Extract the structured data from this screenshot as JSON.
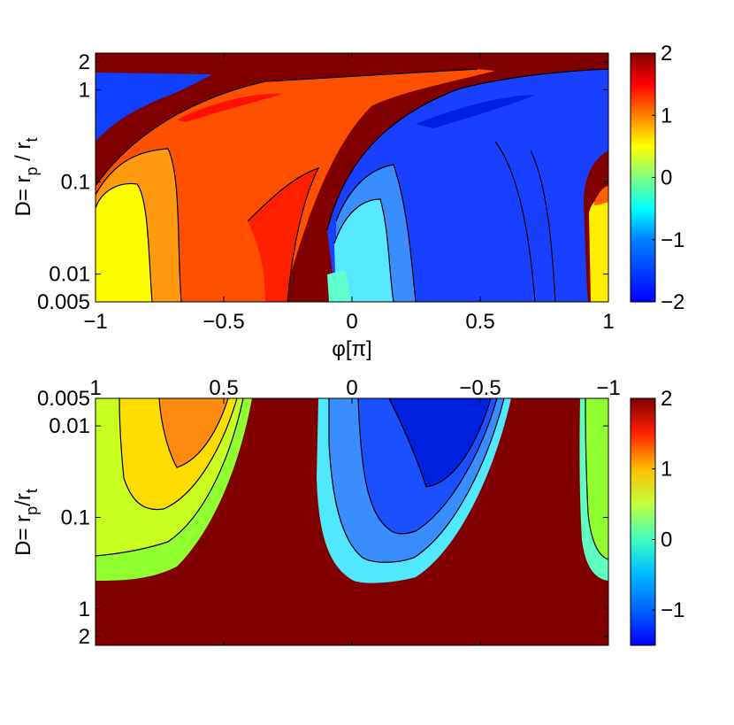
{
  "chart_data": [
    {
      "type": "heatmap",
      "panel": "top",
      "title": "",
      "xlabel_parts": {
        "main": "φ[π]"
      },
      "ylabel_parts": {
        "main": "D= r",
        "sub1": "p",
        "mid": " / r",
        "sub2": "t"
      },
      "x_ticks": [
        "−1",
        "−0.5",
        "0",
        "0.5",
        "1"
      ],
      "x_tick_values": [
        -1,
        -0.5,
        0,
        0.5,
        1
      ],
      "y_ticks": [
        "2",
        "1",
        "0.1",
        "0.01",
        "0.005"
      ],
      "y_tick_values": [
        2,
        1,
        0.1,
        0.01,
        0.005
      ],
      "y_scale": "log",
      "xlim": [
        -1,
        1
      ],
      "ylim": [
        0.005,
        2.5
      ],
      "colorbar_ticks": [
        "2",
        "1",
        "0",
        "−1",
        "−2"
      ],
      "colorbar_values": [
        2,
        1,
        0,
        -1,
        -2
      ],
      "colorbar_range": [
        -2,
        2
      ],
      "colors": {
        "background": "#800000",
        "outline": "#000000"
      }
    },
    {
      "type": "heatmap",
      "panel": "bottom",
      "title": "",
      "xlabel_parts": {
        "main": ""
      },
      "ylabel_parts": {
        "main": "D= r",
        "sub1": "p",
        "mid": "/r",
        "sub2": "t"
      },
      "x_ticks": [
        "1",
        "0.5",
        "0",
        "−0.5",
        "−1"
      ],
      "x_tick_values": [
        1,
        0.5,
        0,
        -0.5,
        -1
      ],
      "x_axis_position": "top",
      "y_ticks": [
        "0.005",
        "0.01",
        "0.1",
        "1",
        "2"
      ],
      "y_tick_values": [
        0.005,
        0.01,
        0.1,
        1,
        2
      ],
      "y_scale": "log",
      "y_reversed": true,
      "xlim": [
        1,
        -1
      ],
      "ylim": [
        0.005,
        2.5
      ],
      "colorbar_ticks": [
        "2",
        "1",
        "0",
        "−1"
      ],
      "colorbar_values": [
        2,
        1,
        0,
        -1
      ],
      "colorbar_range": [
        -1.5,
        2
      ],
      "colors": {
        "background": "#800000",
        "outline": "#000000"
      }
    }
  ]
}
